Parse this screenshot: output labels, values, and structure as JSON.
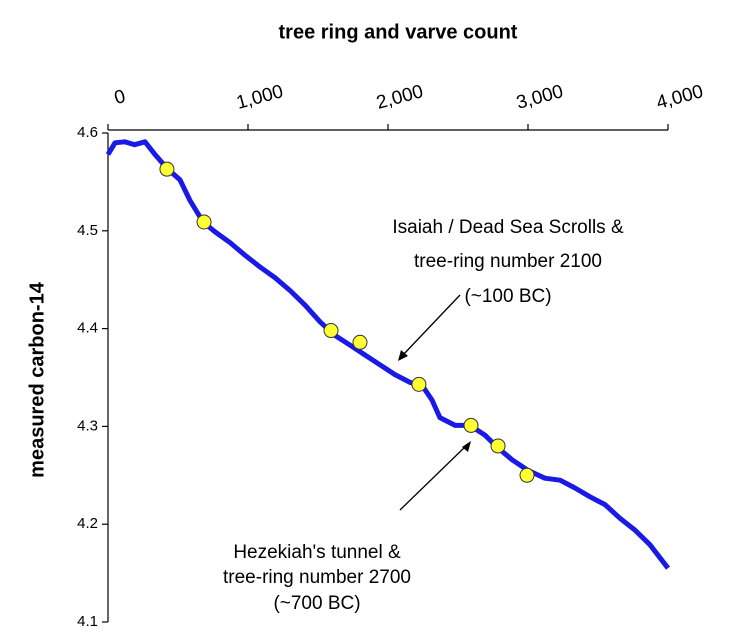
{
  "chart_data": {
    "type": "line",
    "title": "tree ring and varve count",
    "y_label": "measured carbon-14",
    "xlim": [
      0,
      4000
    ],
    "xticks": [
      0,
      {
        "value": 1000,
        "label": "1,000"
      },
      {
        "value": 2000,
        "label": "2,000"
      },
      {
        "value": 3000,
        "label": "3,000"
      },
      {
        "value": 4000,
        "label": "4,000"
      }
    ],
    "ylim": [
      4.1,
      4.6
    ],
    "yticks": [
      4.1,
      4.2,
      4.3,
      4.4,
      4.5,
      4.6
    ],
    "series": [
      {
        "color": "#1a1ae6",
        "x": [
          0,
          50,
          120,
          190,
          264,
          336,
          421,
          514,
          586,
          679,
          764,
          871,
          979,
          1086,
          1193,
          1300,
          1407,
          1514,
          1621,
          1729,
          1836,
          1943,
          2050,
          2157,
          2243,
          2314,
          2371,
          2479,
          2586,
          2693,
          2786,
          2886,
          3000,
          3121,
          3229,
          3336,
          3443,
          3550,
          3657,
          3764,
          3871,
          4000
        ],
        "values": [
          4.578,
          4.59,
          4.591,
          4.588,
          4.591,
          4.578,
          4.564,
          4.552,
          4.531,
          4.509,
          4.499,
          4.488,
          4.475,
          4.463,
          4.452,
          4.439,
          4.424,
          4.407,
          4.393,
          4.383,
          4.373,
          4.363,
          4.353,
          4.345,
          4.342,
          4.327,
          4.309,
          4.301,
          4.301,
          4.291,
          4.278,
          4.266,
          4.255,
          4.247,
          4.245,
          4.237,
          4.228,
          4.22,
          4.206,
          4.194,
          4.179,
          4.155
        ]
      },
      {
        "type": "scatter",
        "color": "#ffff33",
        "x": [
          421,
          686,
          1593,
          1800,
          2221,
          2593,
          2786,
          2993
        ],
        "values": [
          4.563,
          4.509,
          4.398,
          4.386,
          4.343,
          4.301,
          4.28,
          4.25
        ]
      }
    ],
    "annotations": [
      {
        "lines": [
          "Isaiah / Dead Sea Scrolls &",
          "tree-ring number 2100",
          "(~100 BC)"
        ]
      },
      {
        "lines": [
          "Hezekiah's tunnel &",
          "tree-ring number 2700",
          "(~700 BC)"
        ]
      }
    ]
  }
}
